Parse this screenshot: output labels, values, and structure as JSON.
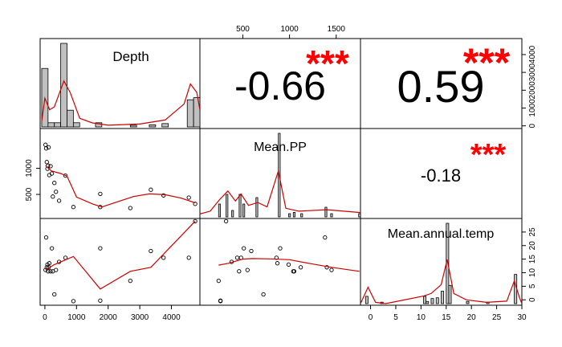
{
  "chart_data": {
    "type": "scatter-matrix",
    "variables": [
      "Depth",
      "Mean.PP",
      "Mean.annual.temp"
    ],
    "correlations": [
      {
        "row": 0,
        "col": 1,
        "value": "-0.66",
        "stars": "***"
      },
      {
        "row": 0,
        "col": 2,
        "value": "0.59",
        "stars": "***"
      },
      {
        "row": 1,
        "col": 2,
        "value": "-0.18",
        "stars": "***"
      }
    ],
    "axes": {
      "Depth": {
        "range": [
          -150,
          4900
        ],
        "ticks": [
          0,
          1000,
          2000,
          3000,
          4000
        ],
        "tick_labels": [
          "0",
          "1000",
          "2000",
          "3000",
          "4000"
        ]
      },
      "Mean.PP": {
        "range": [
          40,
          1760
        ],
        "ticks": [
          500,
          1000,
          1500
        ],
        "tick_labels": [
          "500",
          "1000",
          "1500"
        ]
      },
      "Mean.annual.temp": {
        "range": [
          -2,
          30
        ],
        "ticks": [
          0,
          5,
          10,
          15,
          20,
          25,
          30
        ],
        "tick_labels": [
          "0",
          "5",
          "10",
          "15",
          "20",
          "25",
          "30"
        ]
      }
    },
    "axis_labels_printed": {
      "top": {
        "var": "Mean.PP",
        "ticks": [
          500,
          1000,
          1500
        ],
        "labels": [
          "500",
          "1000",
          "1500"
        ]
      },
      "right_row0": {
        "var": "Depth",
        "ticks": [
          0,
          1000,
          2000,
          3000,
          4000
        ],
        "labels": [
          "0",
          "1000",
          "2000",
          "3000",
          "4000"
        ]
      },
      "left_row1": {
        "var": "Mean.PP",
        "ticks": [
          500,
          1000
        ],
        "labels": [
          "500",
          "1000"
        ]
      },
      "right_row2": {
        "var": "Mean.annual.temp",
        "ticks": [
          0,
          5,
          10,
          15,
          20,
          25
        ],
        "labels": [
          "0",
          "5",
          "10",
          "15",
          "20",
          "25"
        ]
      },
      "bottom_col0": {
        "var": "Depth",
        "ticks": [
          0,
          1000,
          2000,
          3000,
          4000
        ],
        "labels": [
          "0",
          "1000",
          "2000",
          "3000",
          "4000"
        ]
      },
      "bottom_col2": {
        "var": "Mean.annual.temp",
        "ticks": [
          0,
          5,
          10,
          15,
          20,
          25,
          30
        ],
        "labels": [
          "0",
          "5",
          "10",
          "15",
          "20",
          "25",
          "30"
        ]
      }
    },
    "observations": [
      {
        "Depth": 20,
        "Mean.PP": 1450,
        "Mean.annual.temp": 11
      },
      {
        "Depth": 40,
        "Mean.PP": 1380,
        "Mean.annual.temp": 23
      },
      {
        "Depth": 60,
        "Mean.PP": 1120,
        "Mean.annual.temp": 12
      },
      {
        "Depth": 80,
        "Mean.PP": 990,
        "Mean.annual.temp": 13
      },
      {
        "Depth": 100,
        "Mean.PP": 1050,
        "Mean.annual.temp": 10.5
      },
      {
        "Depth": 120,
        "Mean.PP": 1400,
        "Mean.annual.temp": 12
      },
      {
        "Depth": 140,
        "Mean.PP": 870,
        "Mean.annual.temp": 13.5
      },
      {
        "Depth": 180,
        "Mean.PP": 1040,
        "Mean.annual.temp": 10.5
      },
      {
        "Depth": 220,
        "Mean.PP": 900,
        "Mean.annual.temp": 19
      },
      {
        "Depth": 250,
        "Mean.PP": 460,
        "Mean.annual.temp": 10.5
      },
      {
        "Depth": 300,
        "Mean.PP": 720,
        "Mean.annual.temp": 2
      },
      {
        "Depth": 350,
        "Mean.PP": 550,
        "Mean.annual.temp": 11
      },
      {
        "Depth": 450,
        "Mean.PP": 380,
        "Mean.annual.temp": 14
      },
      {
        "Depth": 650,
        "Mean.PP": 860,
        "Mean.annual.temp": 15.5
      },
      {
        "Depth": 900,
        "Mean.PP": 260,
        "Mean.annual.temp": -0.5
      },
      {
        "Depth": 1750,
        "Mean.PP": 510,
        "Mean.annual.temp": 19
      },
      {
        "Depth": 1750,
        "Mean.PP": 260,
        "Mean.annual.temp": -0.3
      },
      {
        "Depth": 2700,
        "Mean.PP": 240,
        "Mean.annual.temp": 7
      },
      {
        "Depth": 3350,
        "Mean.PP": 590,
        "Mean.annual.temp": 18
      },
      {
        "Depth": 3750,
        "Mean.PP": 480,
        "Mean.annual.temp": 15.5
      },
      {
        "Depth": 4550,
        "Mean.PP": 440,
        "Mean.annual.temp": 15.5
      },
      {
        "Depth": 4750,
        "Mean.PP": 320,
        "Mean.annual.temp": 29
      }
    ],
    "smooth_lines": {
      "Depth_vs_Mean.PP": [
        [
          20,
          1050
        ],
        [
          200,
          950
        ],
        [
          500,
          900
        ],
        [
          700,
          850
        ],
        [
          1000,
          450
        ],
        [
          1500,
          320
        ],
        [
          1800,
          260
        ],
        [
          2300,
          360
        ],
        [
          2800,
          460
        ],
        [
          3300,
          510
        ],
        [
          3800,
          495
        ],
        [
          4300,
          430
        ],
        [
          4750,
          340
        ]
      ],
      "Depth_vs_Mean.annual.temp": [
        [
          20,
          11
        ],
        [
          300,
          13
        ],
        [
          900,
          16
        ],
        [
          1750,
          4
        ],
        [
          2700,
          10.5
        ],
        [
          3350,
          12
        ],
        [
          4750,
          29
        ]
      ],
      "Mean.PP_vs_Mean.annual.temp": [
        [
          240,
          12.8
        ],
        [
          350,
          13.5
        ],
        [
          500,
          15
        ],
        [
          600,
          15.2
        ],
        [
          800,
          15.1
        ],
        [
          1000,
          14.8
        ],
        [
          1200,
          13.5
        ],
        [
          1450,
          12
        ],
        [
          1750,
          10.5
        ]
      ]
    },
    "histograms": {
      "Depth": {
        "bins": [
          [
            -100,
            100,
            14
          ],
          [
            100,
            300,
            1
          ],
          [
            300,
            500,
            1
          ],
          [
            500,
            700,
            20
          ],
          [
            700,
            900,
            4
          ],
          [
            900,
            1100,
            1
          ],
          [
            1600,
            1800,
            1
          ],
          [
            2700,
            2900,
            0.4
          ],
          [
            3300,
            3500,
            0.5
          ],
          [
            3700,
            3900,
            0.8
          ],
          [
            4500,
            4700,
            6.5
          ],
          [
            4700,
            4900,
            7
          ]
        ],
        "density": [
          [
            -100,
            1
          ],
          [
            0,
            5
          ],
          [
            150,
            3
          ],
          [
            300,
            3.5
          ],
          [
            600,
            8
          ],
          [
            800,
            6
          ],
          [
            1100,
            1.5
          ],
          [
            1500,
            0.7
          ],
          [
            2000,
            0.3
          ],
          [
            3000,
            0.5
          ],
          [
            3800,
            1.2
          ],
          [
            4400,
            4
          ],
          [
            4600,
            7.5
          ],
          [
            4800,
            6
          ],
          [
            4900,
            3
          ]
        ]
      },
      "Mean.PP": {
        "bins": [
          [
            240,
            260,
            2
          ],
          [
            320,
            340,
            3.5
          ],
          [
            380,
            400,
            1
          ],
          [
            460,
            480,
            3.5
          ],
          [
            500,
            520,
            2
          ],
          [
            640,
            660,
            3
          ],
          [
            880,
            900,
            13
          ],
          [
            990,
            1010,
            0.5
          ],
          [
            1040,
            1060,
            0.7
          ],
          [
            1120,
            1140,
            0.5
          ],
          [
            1380,
            1400,
            1.5
          ],
          [
            1440,
            1460,
            0.5
          ],
          [
            1740,
            1760,
            0.5
          ]
        ],
        "density": [
          [
            40,
            0.2
          ],
          [
            150,
            0.4
          ],
          [
            250,
            1.2
          ],
          [
            340,
            1.8
          ],
          [
            420,
            1.1
          ],
          [
            480,
            1.6
          ],
          [
            560,
            0.8
          ],
          [
            660,
            1.0
          ],
          [
            760,
            0.7
          ],
          [
            880,
            3.2
          ],
          [
            960,
            0.6
          ],
          [
            1100,
            0.4
          ],
          [
            1400,
            0.5
          ],
          [
            1760,
            0.3
          ]
        ]
      },
      "Mean.annual.temp": {
        "bins": [
          [
            -1,
            -0.5,
            1
          ],
          [
            2,
            2.5,
            0.2
          ],
          [
            10.5,
            11,
            1
          ],
          [
            11,
            11.5,
            0.3
          ],
          [
            12,
            12.5,
            0.7
          ],
          [
            13,
            13.5,
            0.8
          ],
          [
            14,
            14.5,
            1.7
          ],
          [
            15,
            15.5,
            11
          ],
          [
            15.5,
            16,
            2.5
          ],
          [
            19,
            19.5,
            0.3
          ],
          [
            23,
            23.5,
            0.2
          ],
          [
            28.5,
            29,
            4
          ]
        ],
        "density": [
          [
            -2,
            0
          ],
          [
            -0.5,
            1.3
          ],
          [
            1,
            0.1
          ],
          [
            3,
            0
          ],
          [
            10.5,
            0.6
          ],
          [
            12,
            0.8
          ],
          [
            14,
            1.5
          ],
          [
            15.2,
            3.5
          ],
          [
            16.5,
            0.8
          ],
          [
            19,
            0.3
          ],
          [
            23,
            0.1
          ],
          [
            27,
            0.2
          ],
          [
            28.5,
            1.8
          ],
          [
            29.5,
            0.5
          ],
          [
            30,
            0
          ]
        ]
      }
    },
    "grid": false,
    "colors": {
      "smooth": "#cc0000",
      "stars": "#ff0000",
      "points": "#000000",
      "bars": "#c0c0c0"
    }
  }
}
